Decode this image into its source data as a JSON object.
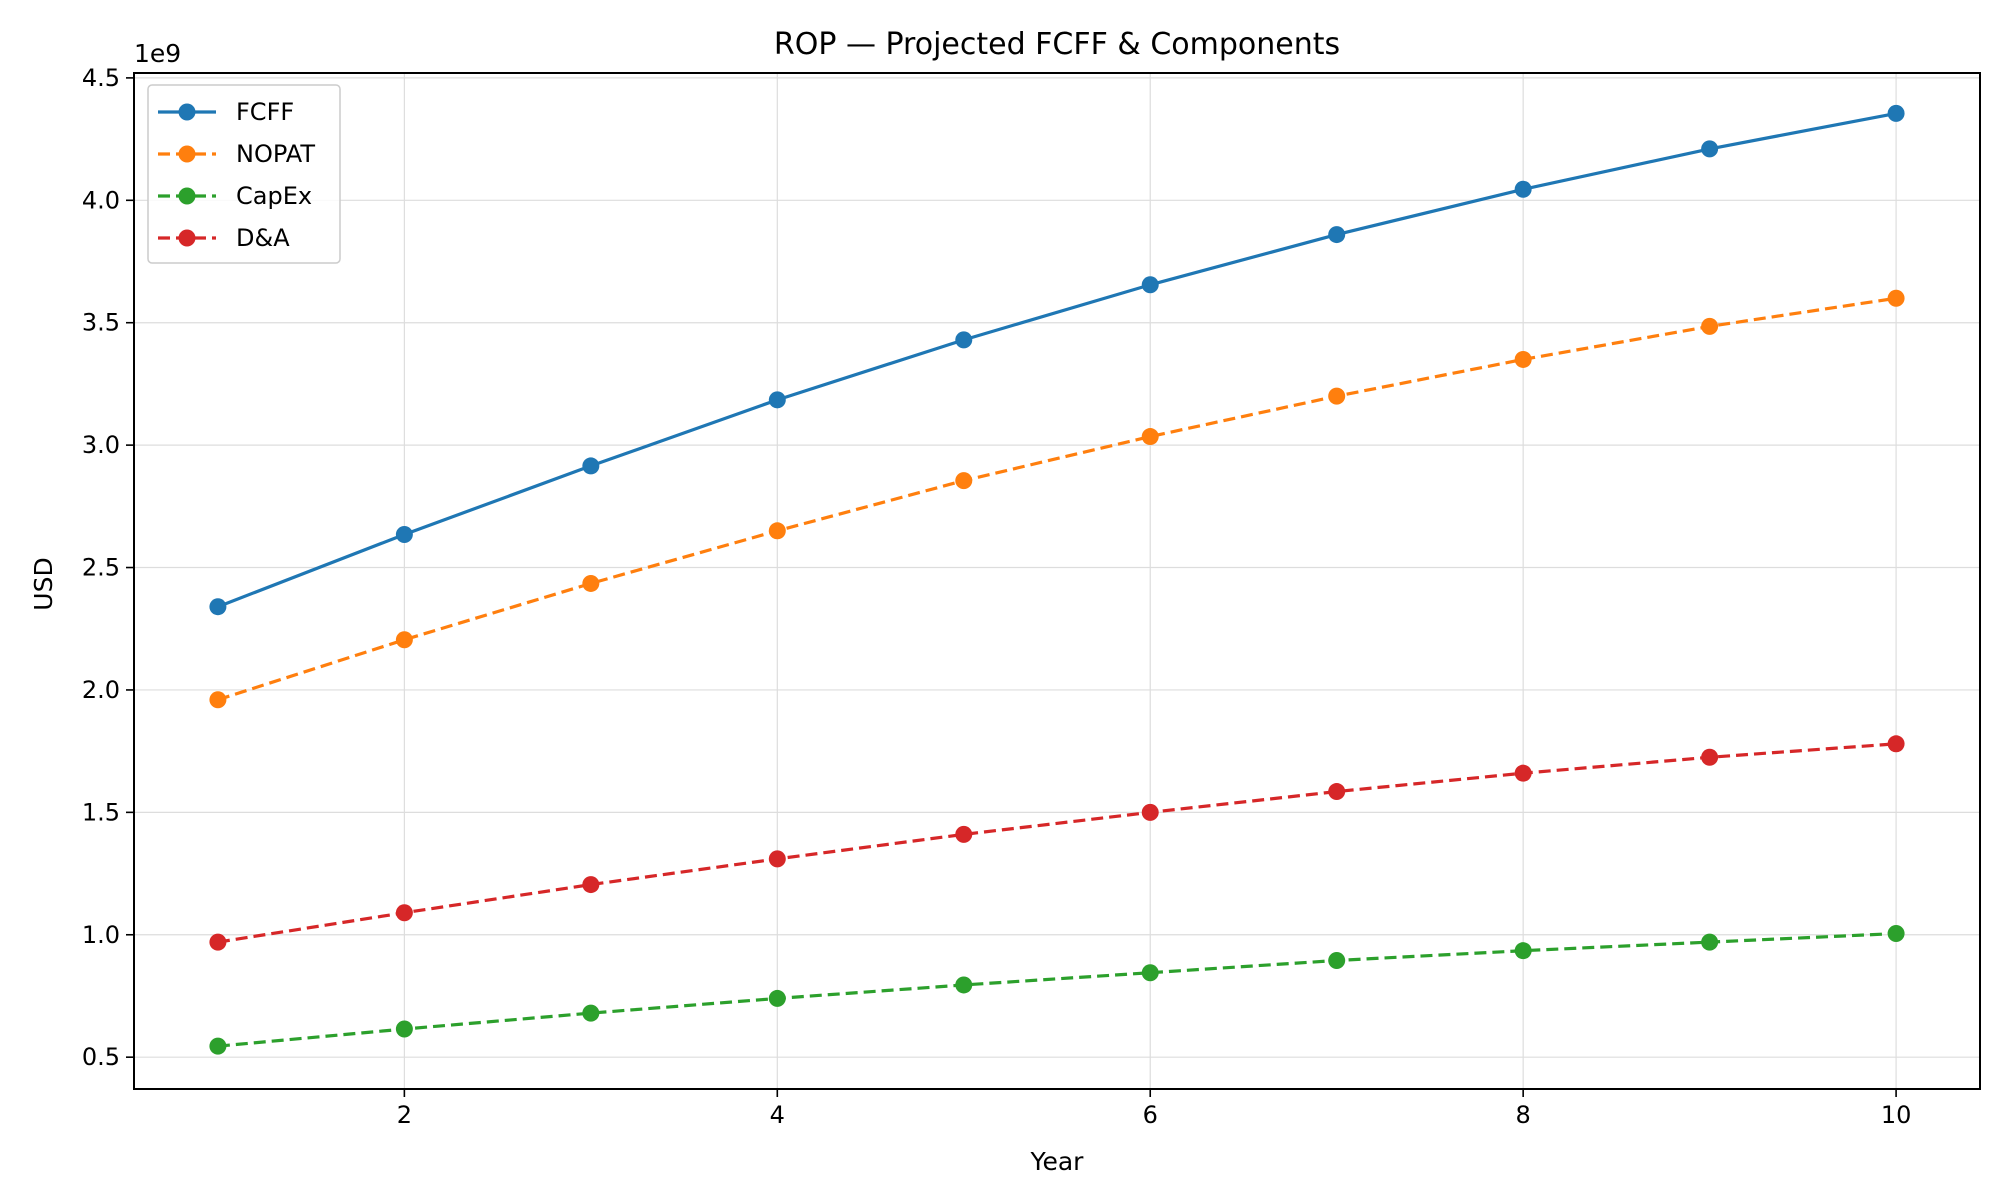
{
  "chart_data": {
    "type": "line",
    "title": "ROP — Projected FCFF & Components",
    "xlabel": "Year",
    "ylabel": "USD",
    "y_offset_label": "1e9",
    "xlim": [
      0.55,
      10.45
    ],
    "ylim": [
      0.37,
      4.52
    ],
    "x_ticks": [
      2,
      4,
      6,
      8,
      10
    ],
    "y_ticks": [
      0.5,
      1.0,
      1.5,
      2.0,
      2.5,
      3.0,
      3.5,
      4.0,
      4.5
    ],
    "x_tick_labels": [
      "2",
      "4",
      "6",
      "8",
      "10"
    ],
    "y_tick_labels": [
      "0.5",
      "1.0",
      "1.5",
      "2.0",
      "2.5",
      "3.0",
      "3.5",
      "4.0",
      "4.5"
    ],
    "grid": true,
    "legend_position": "upper-left",
    "x": [
      1,
      2,
      3,
      4,
      5,
      6,
      7,
      8,
      9,
      10
    ],
    "series": [
      {
        "name": "FCFF",
        "color": "#1f77b4",
        "line_style": "solid",
        "marker": "circle",
        "values": [
          2.34,
          2.635,
          2.915,
          3.185,
          3.43,
          3.655,
          3.86,
          4.045,
          4.21,
          4.355
        ]
      },
      {
        "name": "NOPAT",
        "color": "#ff7f0e",
        "line_style": "dashed",
        "marker": "circle",
        "values": [
          1.96,
          2.205,
          2.435,
          2.65,
          2.855,
          3.035,
          3.2,
          3.35,
          3.485,
          3.6
        ]
      },
      {
        "name": "CapEx",
        "color": "#2ca02c",
        "line_style": "dashed",
        "marker": "circle",
        "values": [
          0.545,
          0.615,
          0.68,
          0.74,
          0.795,
          0.845,
          0.895,
          0.935,
          0.97,
          1.005
        ]
      },
      {
        "name": "D&A",
        "color": "#d62728",
        "line_style": "dashed",
        "marker": "circle",
        "values": [
          0.97,
          1.09,
          1.205,
          1.31,
          1.41,
          1.5,
          1.585,
          1.66,
          1.725,
          1.78
        ]
      }
    ]
  }
}
